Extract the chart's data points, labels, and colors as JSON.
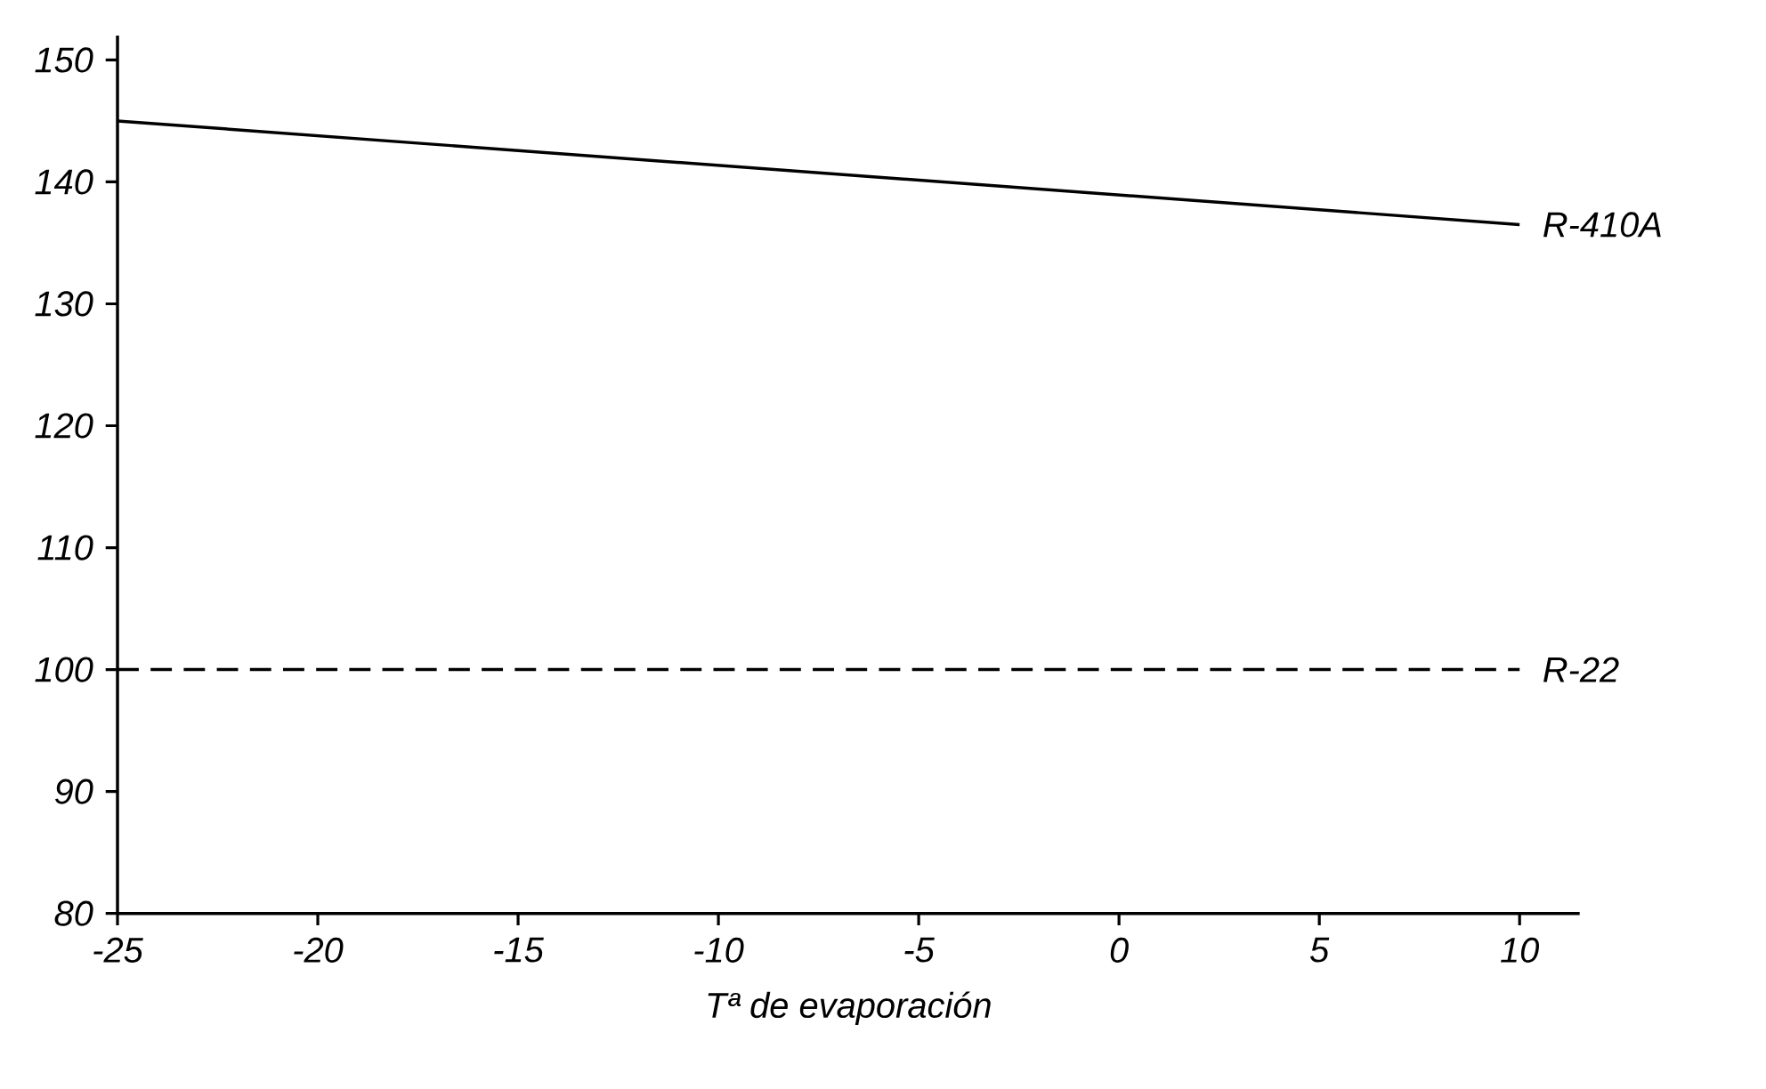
{
  "chart_data": {
    "type": "line",
    "xlabel": "Tª de evaporación",
    "x": [
      -25,
      10
    ],
    "series": [
      {
        "name": "R-410A",
        "color": "#000000",
        "line_style": "solid",
        "values": [
          145,
          136.5
        ]
      },
      {
        "name": "R-22",
        "color": "#000000",
        "line_style": "dashed",
        "values": [
          100,
          100
        ]
      }
    ],
    "xlim": [
      -25,
      11.5
    ],
    "ylim": [
      80,
      152
    ],
    "xticks": [
      -25,
      -20,
      -15,
      -10,
      -5,
      0,
      5,
      10
    ],
    "yticks": [
      80,
      90,
      100,
      110,
      120,
      130,
      140,
      150
    ],
    "grid": false,
    "marker": "none"
  }
}
